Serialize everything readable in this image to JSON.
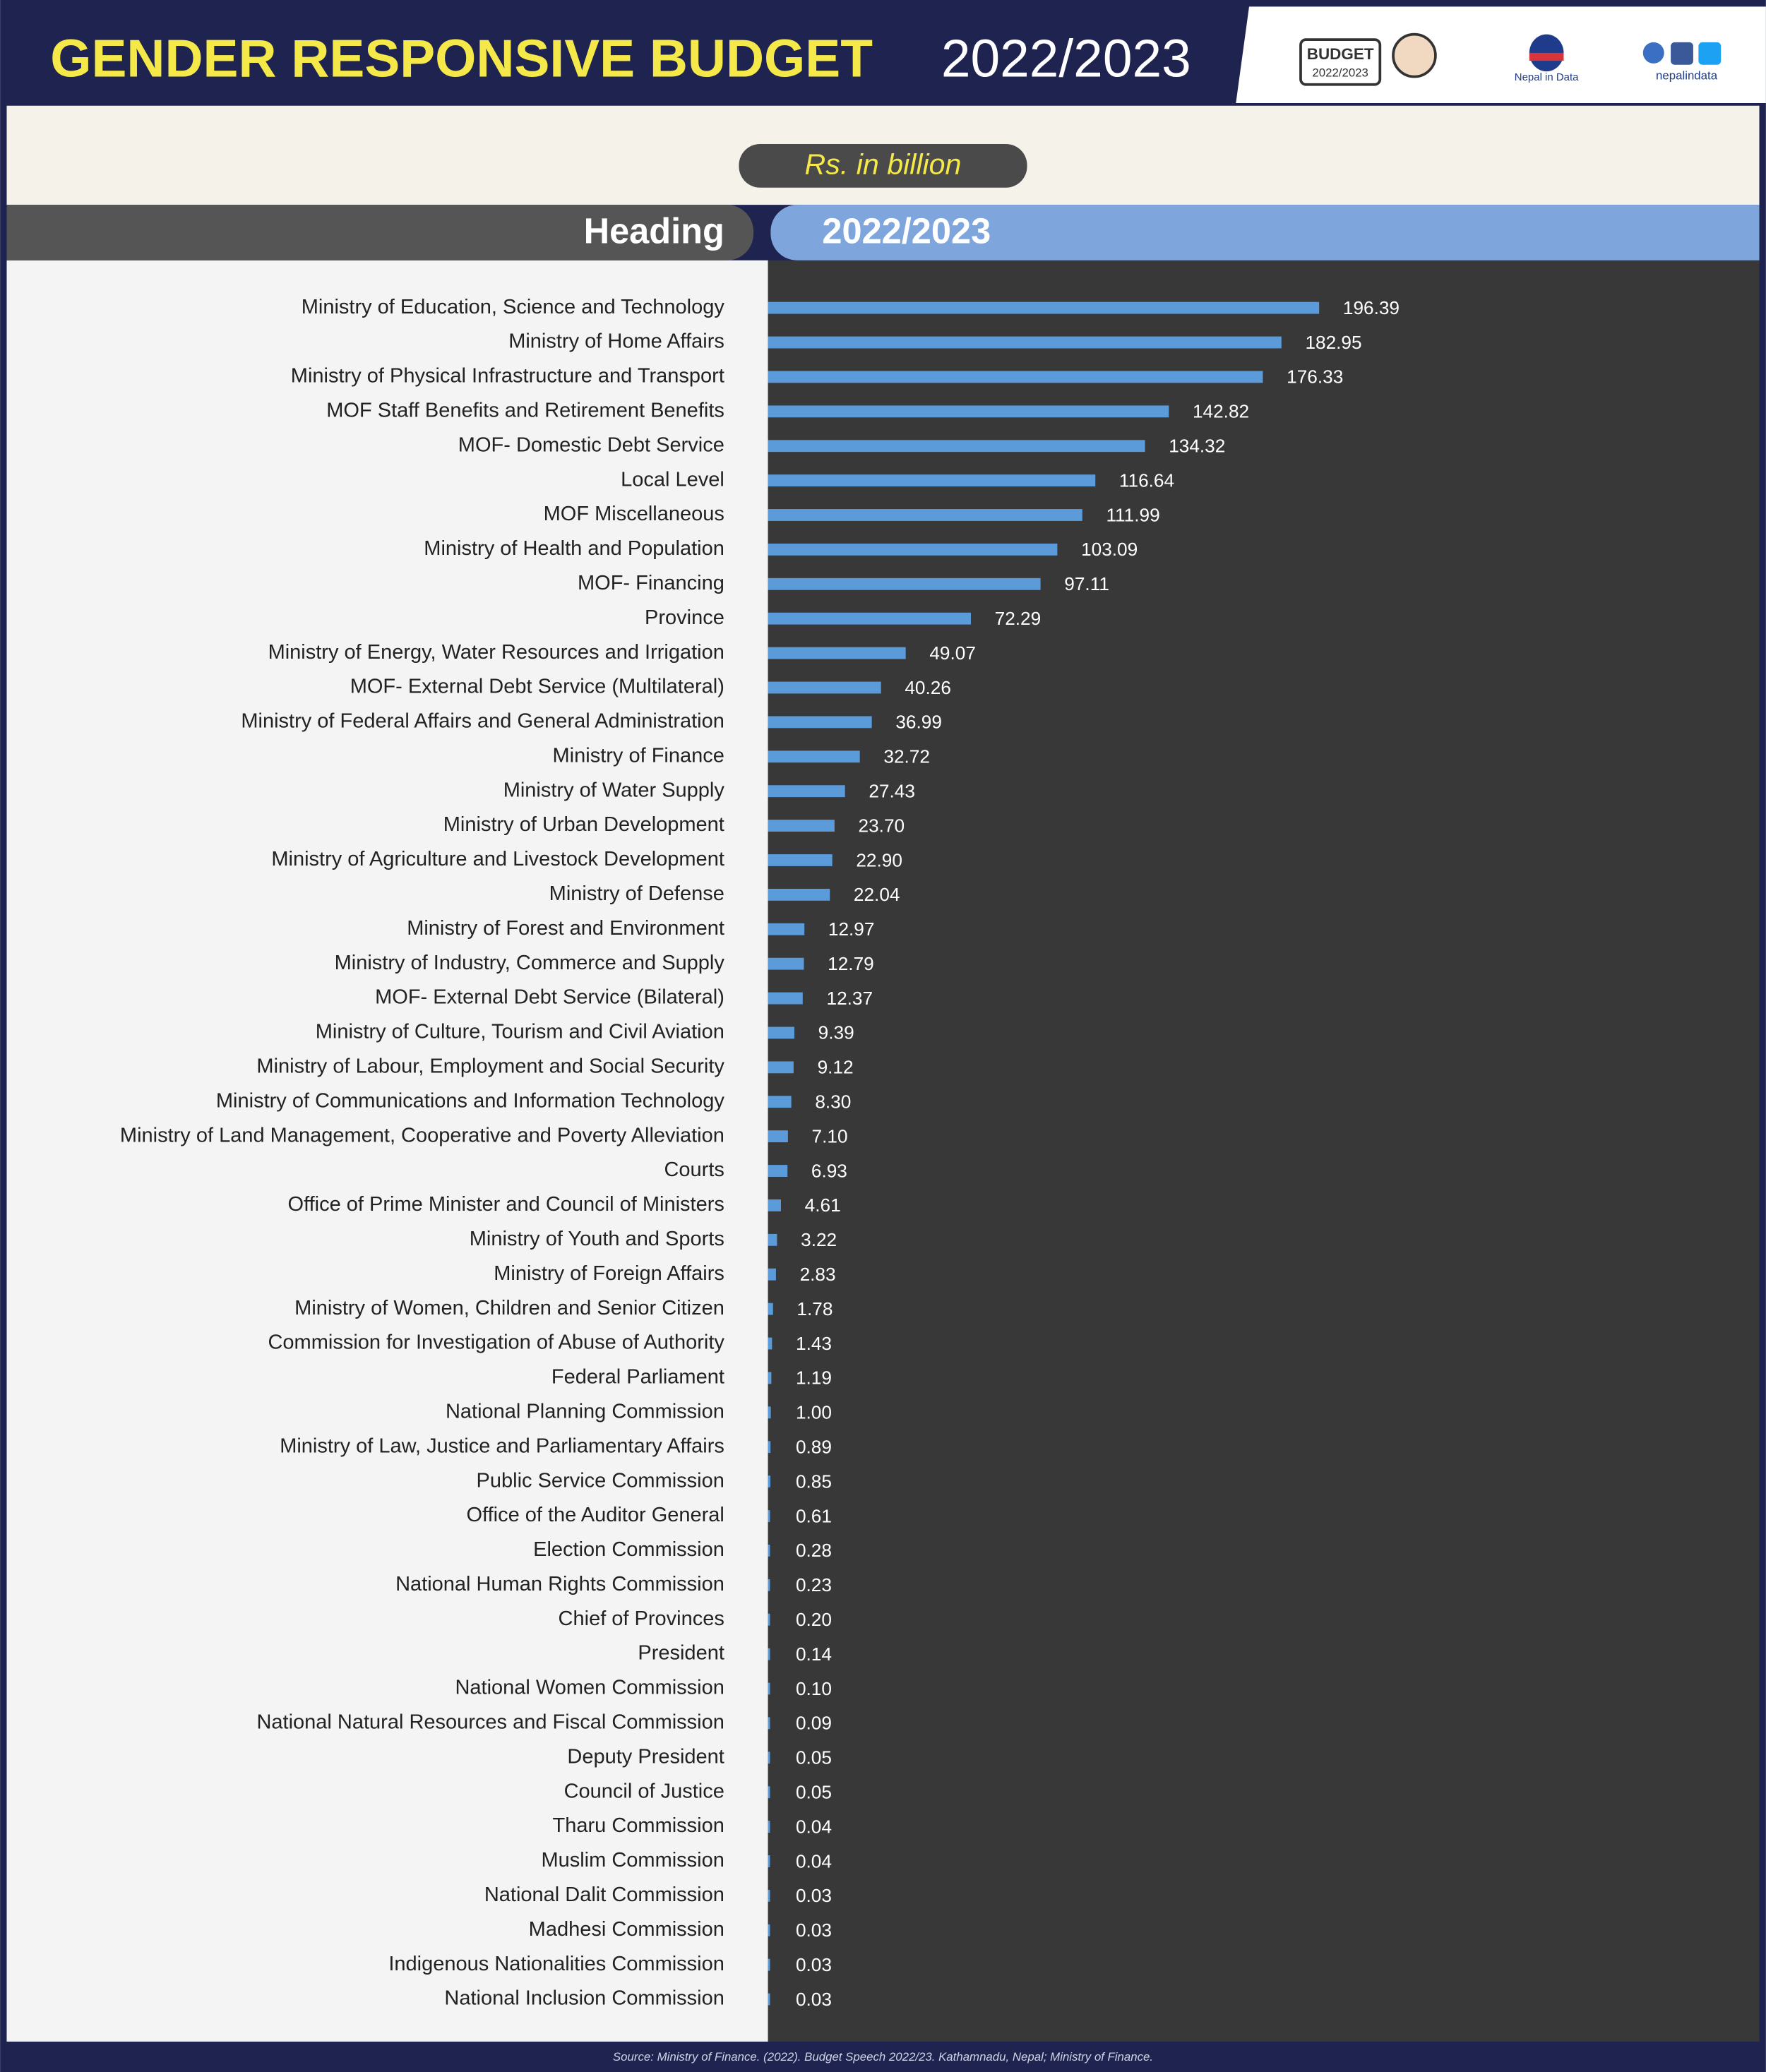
{
  "chart_data": {
    "type": "bar",
    "orientation": "horizontal",
    "title": "GENDER RESPONSIVE BUDGET",
    "title_year": "2022/2023",
    "unit": "Rs. in billion",
    "categories_header": "Heading",
    "values_header": "2022/2023",
    "color": "#5b9bd9",
    "categories": [
      "Ministry of Education, Science and Technology",
      "Ministry of Home Affairs",
      "Ministry of Physical Infrastructure and Transport",
      "MOF Staff Benefits and Retirement Benefits",
      "MOF- Domestic Debt Service",
      "Local Level",
      "MOF Miscellaneous",
      "Ministry of Health and Population",
      "MOF- Financing",
      "Province",
      "Ministry of Energy, Water Resources and Irrigation",
      "MOF- External Debt Service (Multilateral)",
      "Ministry of Federal Affairs and General Administration",
      "Ministry of Finance",
      "Ministry of Water Supply",
      "Ministry of Urban Development",
      "Ministry of Agriculture and Livestock Development",
      "Ministry of Defense",
      "Ministry of Forest and Environment",
      "Ministry of Industry, Commerce and Supply",
      "MOF- External Debt Service (Bilateral)",
      "Ministry of Culture, Tourism and Civil Aviation",
      "Ministry of Labour, Employment and Social Security",
      "Ministry of Communications and Information Technology",
      "Ministry of Land Management, Cooperative and Poverty Alleviation",
      "Courts",
      "Office of Prime Minister and Council of Ministers",
      "Ministry of Youth and Sports",
      "Ministry of Foreign Affairs",
      "Ministry of Women, Children and Senior Citizen",
      "Commission for Investigation of Abuse of Authority",
      "Federal Parliament",
      "National Planning Commission",
      "Ministry of Law, Justice and Parliamentary Affairs",
      "Public Service Commission",
      "Office of the Auditor General",
      "Election Commission",
      "National Human Rights Commission",
      "Chief of Provinces",
      "President",
      "National Women Commission",
      "National Natural Resources and Fiscal Commission",
      "Deputy President",
      "Council of Justice",
      "Tharu Commission",
      "Muslim Commission",
      "National Dalit Commission",
      "Madhesi Commission",
      "Indigenous Nationalities Commission",
      "National Inclusion Commission"
    ],
    "values": [
      196.39,
      182.95,
      176.33,
      142.82,
      134.32,
      116.64,
      111.99,
      103.09,
      97.11,
      72.29,
      49.07,
      40.26,
      36.99,
      32.72,
      27.43,
      23.7,
      22.9,
      22.04,
      12.97,
      12.79,
      12.37,
      9.39,
      9.12,
      8.3,
      7.1,
      6.93,
      4.61,
      3.22,
      2.83,
      1.78,
      1.43,
      1.19,
      1,
      0.89,
      0.85,
      0.61,
      0.28,
      0.23,
      0.2,
      0.14,
      0.1,
      0.09,
      0.05,
      0.05,
      0.04,
      0.04,
      0.03,
      0.03,
      0.03,
      0.03
    ],
    "value_labels": [
      "196.39",
      "182.95",
      "176.33",
      "142.82",
      "134.32",
      "116.64",
      "111.99",
      "103.09",
      "97.11",
      "72.29",
      "49.07",
      "40.26",
      "36.99",
      "32.72",
      "27.43",
      "23.70",
      "22.90",
      "22.04",
      "12.97",
      "12.79",
      "12.37",
      "9.39",
      "9.12",
      "8.30",
      "7.10",
      "6.93",
      "4.61",
      "3.22",
      "2.83",
      "1.78",
      "1.43",
      "1.19",
      "1.00",
      "0.89",
      "0.85",
      "0.61",
      "0.28",
      "0.23",
      "0.20",
      "0.14",
      "0.10",
      "0.09",
      "0.05",
      "0.05",
      "0.04",
      "0.04",
      "0.03",
      "0.03",
      "0.03",
      "0.03"
    ],
    "source": "Source: Ministry of Finance. (2022). Budget Speech 2022/23. Kathamnadu, Nepal; Ministry of Finance."
  },
  "branding": {
    "badge": "BUDGET",
    "badge_year": "2022/2023",
    "logo": "Nepal in Data",
    "handle": "nepalindata"
  }
}
